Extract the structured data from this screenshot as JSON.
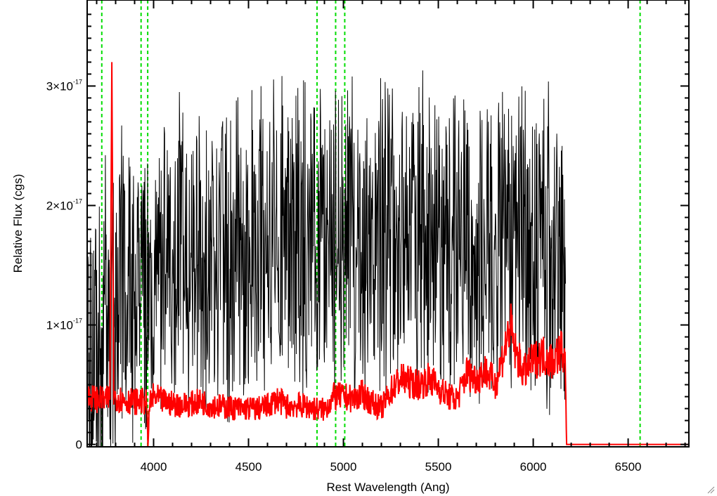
{
  "chart_data": {
    "type": "line",
    "xlabel": "Rest Wavelength (Ang)",
    "ylabel": "Relative Flux (cgs)",
    "xlim": [
      3650,
      6820
    ],
    "ylim": [
      -2e-19,
      3.72e-17
    ],
    "x_ticks": [
      4000,
      4500,
      5000,
      5500,
      6000,
      6500
    ],
    "y_ticks": [
      {
        "value": 0,
        "label": "0"
      },
      {
        "value": 1e-17,
        "mantissa": "1",
        "times": "×",
        "base": "10",
        "exponent": "-17"
      },
      {
        "value": 2e-17,
        "mantissa": "2",
        "times": "×",
        "base": "10",
        "exponent": "-17"
      },
      {
        "value": 3e-17,
        "mantissa": "3",
        "times": "×",
        "base": "10",
        "exponent": "-17"
      }
    ],
    "grid": false,
    "colors": {
      "spectrum": "#000000",
      "noise": "#ff0000",
      "lines": "#00dd00"
    },
    "series": [
      {
        "color": "#000000",
        "points": [
          [
            3650,
            8e-18
          ],
          [
            3680,
            5e-18
          ],
          [
            3700,
            1.1e-17
          ],
          [
            3720,
            6e-18
          ],
          [
            3740,
            1.3e-17
          ],
          [
            3760,
            4e-18
          ],
          [
            3780,
            1.2e-17
          ],
          [
            3800,
            9e-18
          ],
          [
            3850,
            1.5e-17
          ],
          [
            3900,
            1.2e-17
          ],
          [
            3950,
            1.3e-17
          ],
          [
            4000,
            1e-17
          ],
          [
            4050,
            1.5e-17
          ],
          [
            4100,
            1.3e-17
          ],
          [
            4150,
            1.7e-17
          ],
          [
            4200,
            1.4e-17
          ],
          [
            4250,
            1.6e-17
          ],
          [
            4300,
            1.3e-17
          ],
          [
            4350,
            1.7e-17
          ],
          [
            4400,
            1.5e-17
          ],
          [
            4450,
            1.6e-17
          ],
          [
            4500,
            1.7e-17
          ],
          [
            4550,
            1.75e-17
          ],
          [
            4600,
            1.65e-17
          ],
          [
            4650,
            1.75e-17
          ],
          [
            4700,
            1.8e-17
          ],
          [
            4750,
            1.7e-17
          ],
          [
            4800,
            1.75e-17
          ],
          [
            4850,
            1.65e-17
          ],
          [
            4900,
            1.7e-17
          ],
          [
            4950,
            1.6e-17
          ],
          [
            5000,
            1.75e-17
          ],
          [
            5050,
            1.8e-17
          ],
          [
            5100,
            1.7e-17
          ],
          [
            5150,
            1.65e-17
          ],
          [
            5200,
            1.7e-17
          ],
          [
            5250,
            1.8e-17
          ],
          [
            5300,
            1.75e-17
          ],
          [
            5350,
            1.85e-17
          ],
          [
            5400,
            1.7e-17
          ],
          [
            5450,
            1.8e-17
          ],
          [
            5500,
            1.75e-17
          ],
          [
            5550,
            1.8e-17
          ],
          [
            5600,
            1.7e-17
          ],
          [
            5650,
            1.75e-17
          ],
          [
            5700,
            1.7e-17
          ],
          [
            5750,
            1.8e-17
          ],
          [
            5800,
            1.7e-17
          ],
          [
            5850,
            1.75e-17
          ],
          [
            5900,
            1.65e-17
          ],
          [
            5950,
            1.7e-17
          ],
          [
            6000,
            1.6e-17
          ],
          [
            6050,
            1.7e-17
          ],
          [
            6100,
            1.6e-17
          ],
          [
            6150,
            1.65e-17
          ],
          [
            6170,
            1.3e-17
          ]
        ]
      },
      {
        "color": "#ff0000",
        "points": [
          [
            3650,
            4e-18
          ],
          [
            3700,
            3.8e-18
          ],
          [
            3750,
            3.7e-18
          ],
          [
            3770,
            4e-18
          ],
          [
            3780,
            3.2e-17
          ],
          [
            3790,
            4e-18
          ],
          [
            3850,
            3.7e-18
          ],
          [
            3900,
            3.6e-18
          ],
          [
            3950,
            3.6e-18
          ],
          [
            3965,
            3.5e-18
          ],
          [
            3970,
            -2e-19
          ],
          [
            3980,
            3.5e-18
          ],
          [
            4000,
            4e-18
          ],
          [
            4050,
            3.6e-18
          ],
          [
            4100,
            3.4e-18
          ],
          [
            4150,
            3.3e-18
          ],
          [
            4200,
            3.4e-18
          ],
          [
            4250,
            3.6e-18
          ],
          [
            4300,
            3.3e-18
          ],
          [
            4350,
            3.2e-18
          ],
          [
            4400,
            3.1e-18
          ],
          [
            4450,
            3e-18
          ],
          [
            4500,
            3e-18
          ],
          [
            4550,
            3e-18
          ],
          [
            4600,
            3.2e-18
          ],
          [
            4650,
            3.8e-18
          ],
          [
            4700,
            3.2e-18
          ],
          [
            4750,
            3.3e-18
          ],
          [
            4800,
            3.2e-18
          ],
          [
            4850,
            3e-18
          ],
          [
            4900,
            2.9e-18
          ],
          [
            4950,
            4e-18
          ],
          [
            5000,
            4e-18
          ],
          [
            5050,
            3.8e-18
          ],
          [
            5100,
            4.2e-18
          ],
          [
            5150,
            3.5e-18
          ],
          [
            5200,
            3e-18
          ],
          [
            5250,
            4.5e-18
          ],
          [
            5300,
            5.5e-18
          ],
          [
            5350,
            5.2e-18
          ],
          [
            5400,
            5e-18
          ],
          [
            5450,
            5.5e-18
          ],
          [
            5500,
            4.8e-18
          ],
          [
            5550,
            4e-18
          ],
          [
            5600,
            3.8e-18
          ],
          [
            5650,
            6e-18
          ],
          [
            5700,
            5.5e-18
          ],
          [
            5750,
            6.2e-18
          ],
          [
            5800,
            5e-18
          ],
          [
            5850,
            8e-18
          ],
          [
            5880,
            1e-17
          ],
          [
            5900,
            8e-18
          ],
          [
            5950,
            6e-18
          ],
          [
            6000,
            7e-18
          ],
          [
            6050,
            7.5e-18
          ],
          [
            6100,
            7e-18
          ],
          [
            6150,
            8e-18
          ],
          [
            6170,
            6.5e-18
          ],
          [
            6175,
            0
          ],
          [
            6820,
            0
          ]
        ]
      }
    ],
    "vertical_lines": [
      3727,
      3934,
      3969,
      4861,
      4959,
      5007,
      6563
    ]
  }
}
